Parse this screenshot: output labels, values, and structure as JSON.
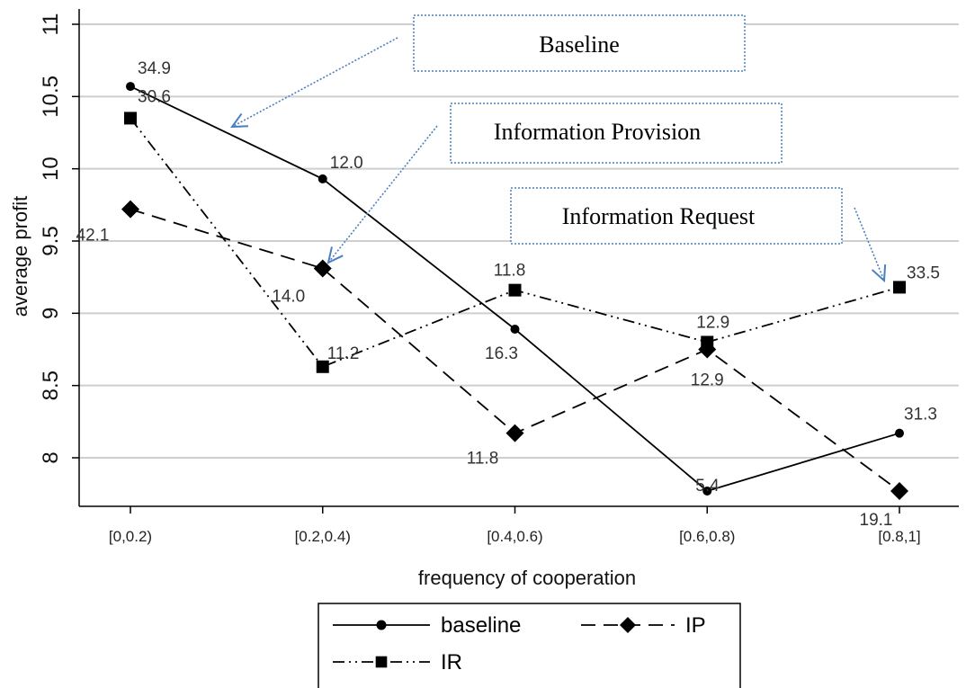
{
  "chart_data": {
    "type": "line",
    "xlabel": "frequency of cooperation",
    "ylabel": "average profit",
    "categories": [
      "[0,0.2)",
      "[0.2,0.4)",
      "[0.4,0.6)",
      "[0.6,0.8)",
      "[0.8,1]"
    ],
    "yticks": [
      "8",
      "8.5",
      "9",
      "9.5",
      "10",
      "10.5",
      "11"
    ],
    "ylim": [
      7.75,
      11.1
    ],
    "grid": "horizontal",
    "legend_position": "bottom",
    "series": [
      {
        "name": "baseline",
        "values": [
          10.57,
          9.93,
          8.89,
          7.77,
          8.17
        ],
        "labels": [
          "34.9",
          "12.0",
          "16.3",
          "5.4",
          "31.3"
        ],
        "marker": "circle",
        "dash": "solid",
        "color": "#000000"
      },
      {
        "name": "IP",
        "values": [
          9.72,
          9.31,
          8.17,
          8.75,
          7.77
        ],
        "labels": [
          "42.1",
          "14.0",
          "11.8",
          "12.9",
          "19.1"
        ],
        "marker": "diamond",
        "dash": "dashed",
        "color": "#000000"
      },
      {
        "name": "IR",
        "values": [
          10.35,
          8.63,
          9.16,
          8.8,
          9.18
        ],
        "labels": [
          "30.6",
          "11.2",
          "11.8",
          "12.9",
          "33.5"
        ],
        "marker": "square",
        "dash": "dash-dot-dot",
        "color": "#000000"
      }
    ],
    "annotations": [
      {
        "text": "Baseline",
        "points_to": "baseline"
      },
      {
        "text": "Information Provision",
        "points_to": "IP"
      },
      {
        "text": "Information Request",
        "points_to": "IR"
      }
    ],
    "annotation_color": "#4a7fc0"
  }
}
